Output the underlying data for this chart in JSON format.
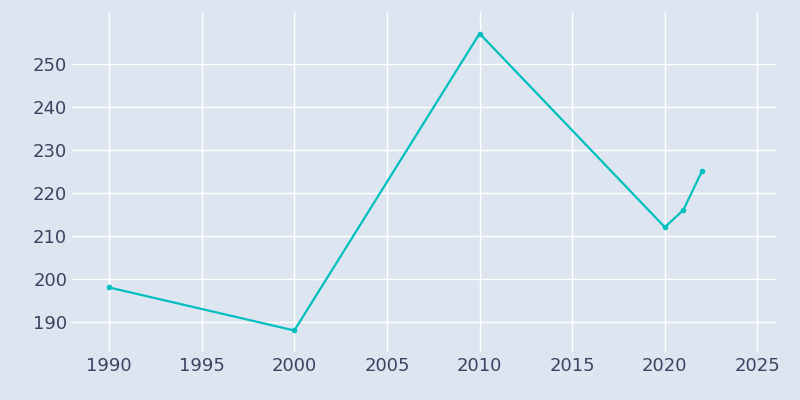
{
  "years": [
    1990,
    2000,
    2010,
    2020,
    2021,
    2022
  ],
  "population": [
    198,
    188,
    257,
    212,
    216,
    225
  ],
  "line_color": "#00BFBF",
  "marker_style": "o",
  "marker_size": 3,
  "background_color": "#dde6f0",
  "plot_bg_color": "#dde6f0",
  "grid_color": "#ffffff",
  "xlim": [
    1988,
    2026
  ],
  "ylim": [
    183,
    262
  ],
  "xticks": [
    1990,
    1995,
    2000,
    2005,
    2010,
    2015,
    2020,
    2025
  ],
  "yticks": [
    190,
    200,
    210,
    220,
    230,
    240,
    250
  ],
  "tick_label_color": "#404060",
  "linewidth": 1.6,
  "tick_fontsize": 13
}
